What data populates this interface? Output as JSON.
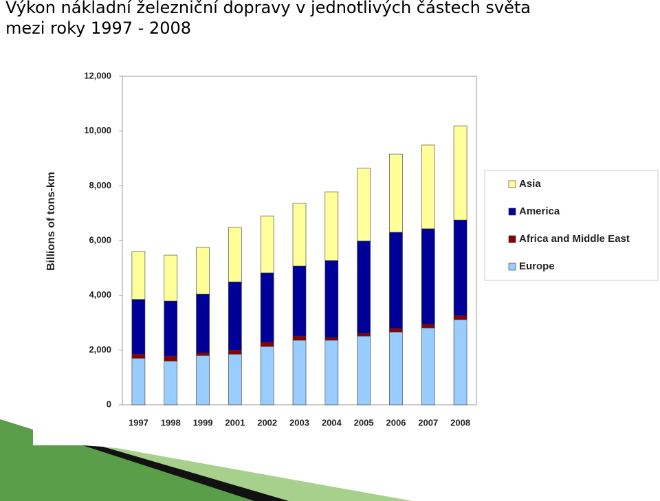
{
  "chart_data": {
    "type": "stacked-bar",
    "title": "Výkon nákladní železniční dopravy v jednotlivých částech světa\nmezi roky 1997 - 2008",
    "y_label": "Billions of tons-km",
    "categories": [
      "1997",
      "1998",
      "1999",
      "2001",
      "2002",
      "2003",
      "2004",
      "2005",
      "2006",
      "2007",
      "2008"
    ],
    "series": [
      {
        "name": "Europe",
        "color": "#99ccff",
        "values": [
          1700,
          1600,
          1800,
          1850,
          2130,
          2360,
          2360,
          2510,
          2660,
          2810,
          3110
        ]
      },
      {
        "name": "Africa and Middle East",
        "color": "#8b0000",
        "values": [
          150,
          180,
          100,
          150,
          150,
          150,
          100,
          100,
          130,
          130,
          150
        ]
      },
      {
        "name": "America",
        "color": "#000099",
        "values": [
          2000,
          2010,
          2140,
          2490,
          2540,
          2560,
          2810,
          3370,
          3510,
          3490,
          3490
        ]
      },
      {
        "name": "Asia",
        "color": "#ffff99",
        "values": [
          1750,
          1680,
          1710,
          1990,
          2080,
          2290,
          2510,
          2660,
          2860,
          3060,
          3440
        ]
      }
    ],
    "ylim": [
      0,
      12000
    ],
    "yticks": [
      0,
      {
        "value": 2000,
        "label": "2,000"
      },
      {
        "value": 4000,
        "label": "4,000"
      },
      {
        "value": 6000,
        "label": "6,000"
      },
      {
        "value": 8000,
        "label": "8,000"
      },
      {
        "value": 10000,
        "label": "10,000"
      },
      {
        "value": 12000,
        "label": "12,000"
      }
    ],
    "legend": "right"
  }
}
